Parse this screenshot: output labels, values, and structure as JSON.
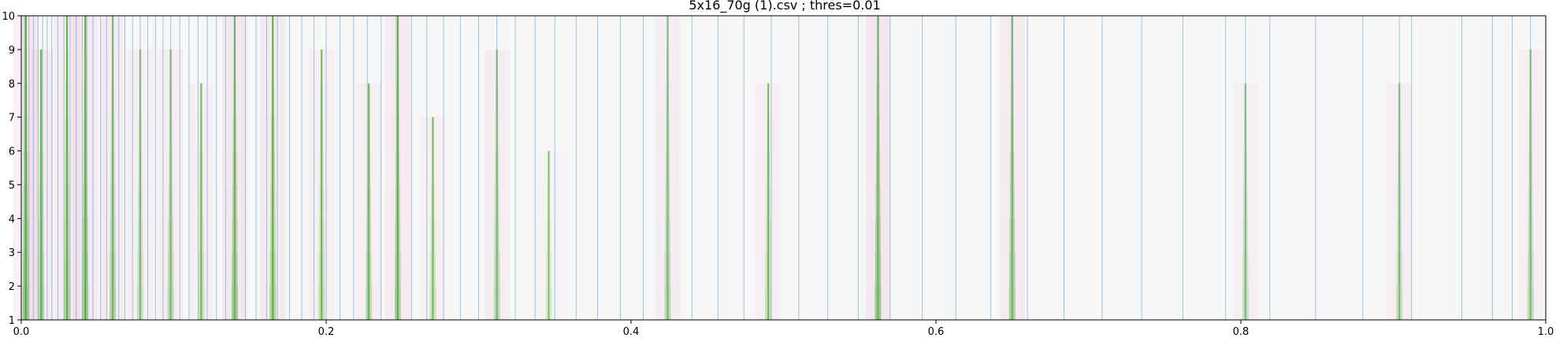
{
  "chart_data": {
    "type": "heatmap",
    "title": "5x16_70g (1).csv ; thres=0.01",
    "xlabel": "",
    "ylabel": "",
    "xlim": [
      0.0,
      1.0
    ],
    "ylim": [
      1,
      10
    ],
    "x_ticks": [
      "0.0",
      "0.2",
      "0.4",
      "0.6",
      "0.8",
      "1.0"
    ],
    "y_ticks": [
      "1",
      "2",
      "3",
      "4",
      "5",
      "6",
      "7",
      "8",
      "9",
      "10"
    ],
    "grid": false,
    "legend": "none",
    "colors": {
      "background": "#f7f7f7",
      "positive": "#4dac26",
      "negative": "#d01c8b",
      "marker_lines": "#7fb2d0"
    },
    "peaks": [
      {
        "x": 0.003,
        "strength": 1.0,
        "max_level": 10
      },
      {
        "x": 0.013,
        "strength": 0.7,
        "max_level": 9
      },
      {
        "x": 0.03,
        "strength": 0.75,
        "max_level": 10
      },
      {
        "x": 0.042,
        "strength": 0.9,
        "max_level": 10
      },
      {
        "x": 0.06,
        "strength": 0.75,
        "max_level": 10
      },
      {
        "x": 0.078,
        "strength": 0.5,
        "max_level": 9
      },
      {
        "x": 0.098,
        "strength": 0.6,
        "max_level": 9
      },
      {
        "x": 0.118,
        "strength": 0.5,
        "max_level": 8
      },
      {
        "x": 0.14,
        "strength": 0.95,
        "max_level": 10
      },
      {
        "x": 0.165,
        "strength": 0.8,
        "max_level": 10
      },
      {
        "x": 0.197,
        "strength": 0.55,
        "max_level": 9
      },
      {
        "x": 0.228,
        "strength": 0.55,
        "max_level": 8
      },
      {
        "x": 0.247,
        "strength": 0.75,
        "max_level": 10
      },
      {
        "x": 0.27,
        "strength": 0.45,
        "max_level": 7
      },
      {
        "x": 0.312,
        "strength": 0.6,
        "max_level": 9
      },
      {
        "x": 0.346,
        "strength": 0.3,
        "max_level": 6
      },
      {
        "x": 0.424,
        "strength": 0.6,
        "max_level": 10
      },
      {
        "x": 0.49,
        "strength": 0.5,
        "max_level": 8
      },
      {
        "x": 0.562,
        "strength": 1.0,
        "max_level": 10
      },
      {
        "x": 0.65,
        "strength": 0.85,
        "max_level": 10
      },
      {
        "x": 0.803,
        "strength": 0.5,
        "max_level": 8
      },
      {
        "x": 0.904,
        "strength": 0.5,
        "max_level": 8
      },
      {
        "x": 0.99,
        "strength": 0.55,
        "max_level": 9
      }
    ],
    "vertical_markers": [
      0.002,
      0.005,
      0.008,
      0.011,
      0.014,
      0.017,
      0.02,
      0.024,
      0.028,
      0.032,
      0.036,
      0.04,
      0.043,
      0.047,
      0.052,
      0.056,
      0.06,
      0.064,
      0.068,
      0.073,
      0.078,
      0.083,
      0.088,
      0.093,
      0.098,
      0.104,
      0.11,
      0.116,
      0.122,
      0.128,
      0.134,
      0.14,
      0.147,
      0.154,
      0.161,
      0.168,
      0.176,
      0.184,
      0.192,
      0.2,
      0.209,
      0.218,
      0.227,
      0.236,
      0.246,
      0.256,
      0.266,
      0.277,
      0.288,
      0.3,
      0.312,
      0.324,
      0.337,
      0.35,
      0.364,
      0.378,
      0.393,
      0.408,
      0.424,
      0.44,
      0.457,
      0.474,
      0.492,
      0.51,
      0.529,
      0.549,
      0.562,
      0.57,
      0.591,
      0.613,
      0.636,
      0.65,
      0.66,
      0.684,
      0.709,
      0.735,
      0.762,
      0.79,
      0.803,
      0.819,
      0.849,
      0.88,
      0.904,
      0.912,
      0.945,
      0.965,
      0.978,
      0.99
    ]
  }
}
